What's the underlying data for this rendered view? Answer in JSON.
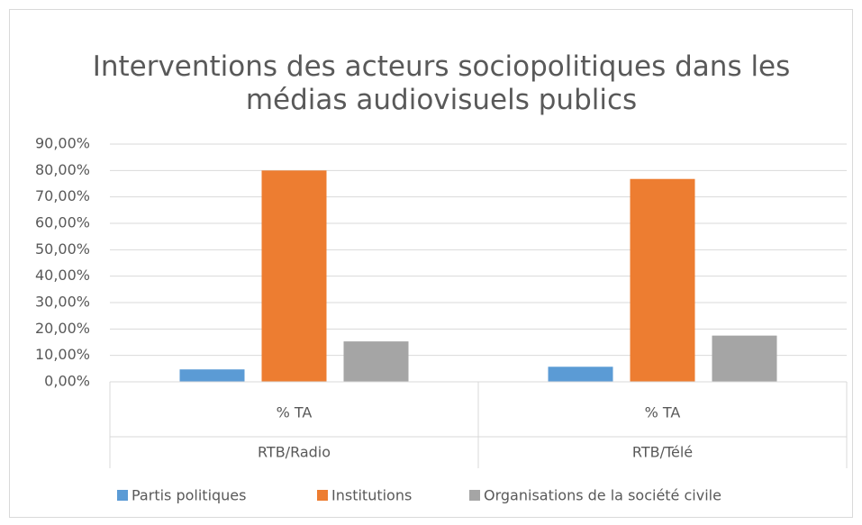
{
  "chart_data": {
    "type": "bar",
    "title": "Interventions des acteurs sociopolitiques dans les médias audiovisuels publics",
    "categories": [
      "% TA",
      "% TA"
    ],
    "groups": [
      "RTB/Radio",
      "RTB/Télé"
    ],
    "series": [
      {
        "name": "Partis politiques",
        "color": "#5b9bd5",
        "values": [
          4.7,
          5.7
        ]
      },
      {
        "name": "Institutions",
        "color": "#ed7d31",
        "values": [
          80.0,
          76.8
        ]
      },
      {
        "name": "Organisations de la société civile",
        "color": "#a5a5a5",
        "values": [
          15.3,
          17.5
        ]
      }
    ],
    "ylim": [
      0,
      90
    ],
    "yticks": [
      {
        "value": 0,
        "label": "0,00%"
      },
      {
        "value": 10,
        "label": "10,00%"
      },
      {
        "value": 20,
        "label": "20,00%"
      },
      {
        "value": 30,
        "label": "30,00%"
      },
      {
        "value": 40,
        "label": "40,00%"
      },
      {
        "value": 50,
        "label": "50,00%"
      },
      {
        "value": 60,
        "label": "60,00%"
      },
      {
        "value": 70,
        "label": "70,00%"
      },
      {
        "value": 80,
        "label": "80,00%"
      },
      {
        "value": 90,
        "label": "90,00%"
      }
    ],
    "grid": true,
    "legend": "bottom"
  }
}
